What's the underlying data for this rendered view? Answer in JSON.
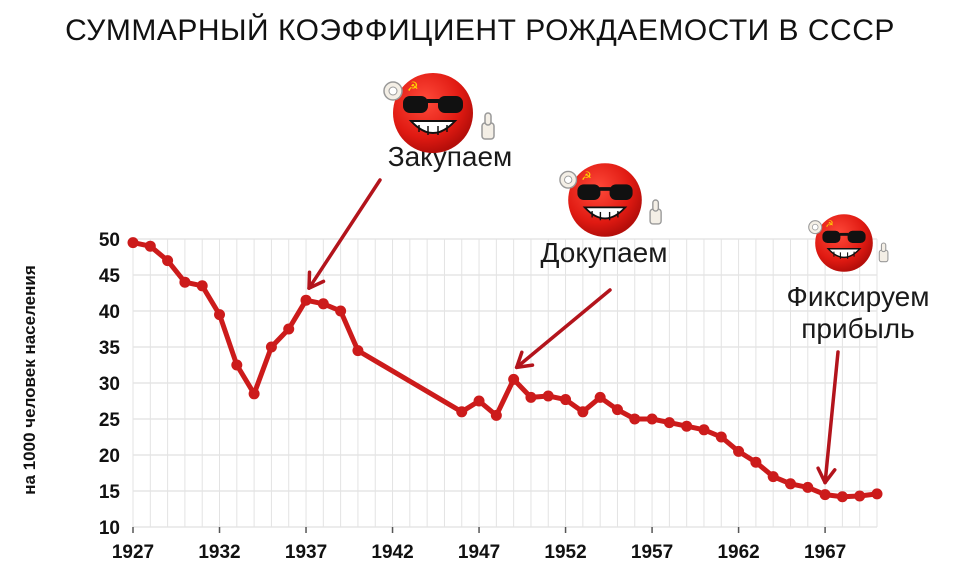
{
  "title": "СУММАРНЫЙ КОЭФФИЦИЕНТ РОЖДАЕМОСТИ В СССР",
  "chart_data": {
    "type": "line",
    "ylabel": "на 1000 человек населения",
    "xlim": [
      1927,
      1970
    ],
    "ylim": [
      10,
      50
    ],
    "xticks": [
      1927,
      1932,
      1937,
      1942,
      1947,
      1952,
      1957,
      1962,
      1967
    ],
    "yticks": [
      10,
      15,
      20,
      25,
      30,
      35,
      40,
      45,
      50
    ],
    "grid": true,
    "series": [
      {
        "color": "#cc1b1b",
        "x": [
          1927,
          1928,
          1929,
          1930,
          1931,
          1932,
          1933,
          1934,
          1935,
          1936,
          1937,
          1938,
          1939,
          1940,
          1946,
          1947,
          1948,
          1949,
          1950,
          1951,
          1952,
          1953,
          1954,
          1955,
          1956,
          1957,
          1958,
          1959,
          1960,
          1961,
          1962,
          1963,
          1964,
          1965,
          1966,
          1967,
          1968,
          1969,
          1970
        ],
        "y": [
          49.5,
          49,
          47,
          44,
          43.5,
          39.5,
          32.5,
          28.5,
          35,
          37.5,
          41.5,
          41,
          40,
          34.5,
          26,
          27.5,
          25.5,
          30.5,
          28,
          28.2,
          27.7,
          26,
          28,
          26.3,
          25,
          25,
          24.5,
          24,
          23.5,
          22.5,
          20.5,
          19,
          17,
          16,
          15.5,
          14.5,
          14.2,
          14.3,
          14.6
        ]
      }
    ],
    "annotations": [
      {
        "label": "Закупаем",
        "target": [
          1937,
          41.5
        ]
      },
      {
        "label": "Докупаем",
        "target": [
          1949,
          30.5
        ]
      },
      {
        "label_lines": [
          "Фиксируем",
          "прибыль"
        ],
        "target": [
          1967,
          14.5
        ]
      }
    ]
  }
}
